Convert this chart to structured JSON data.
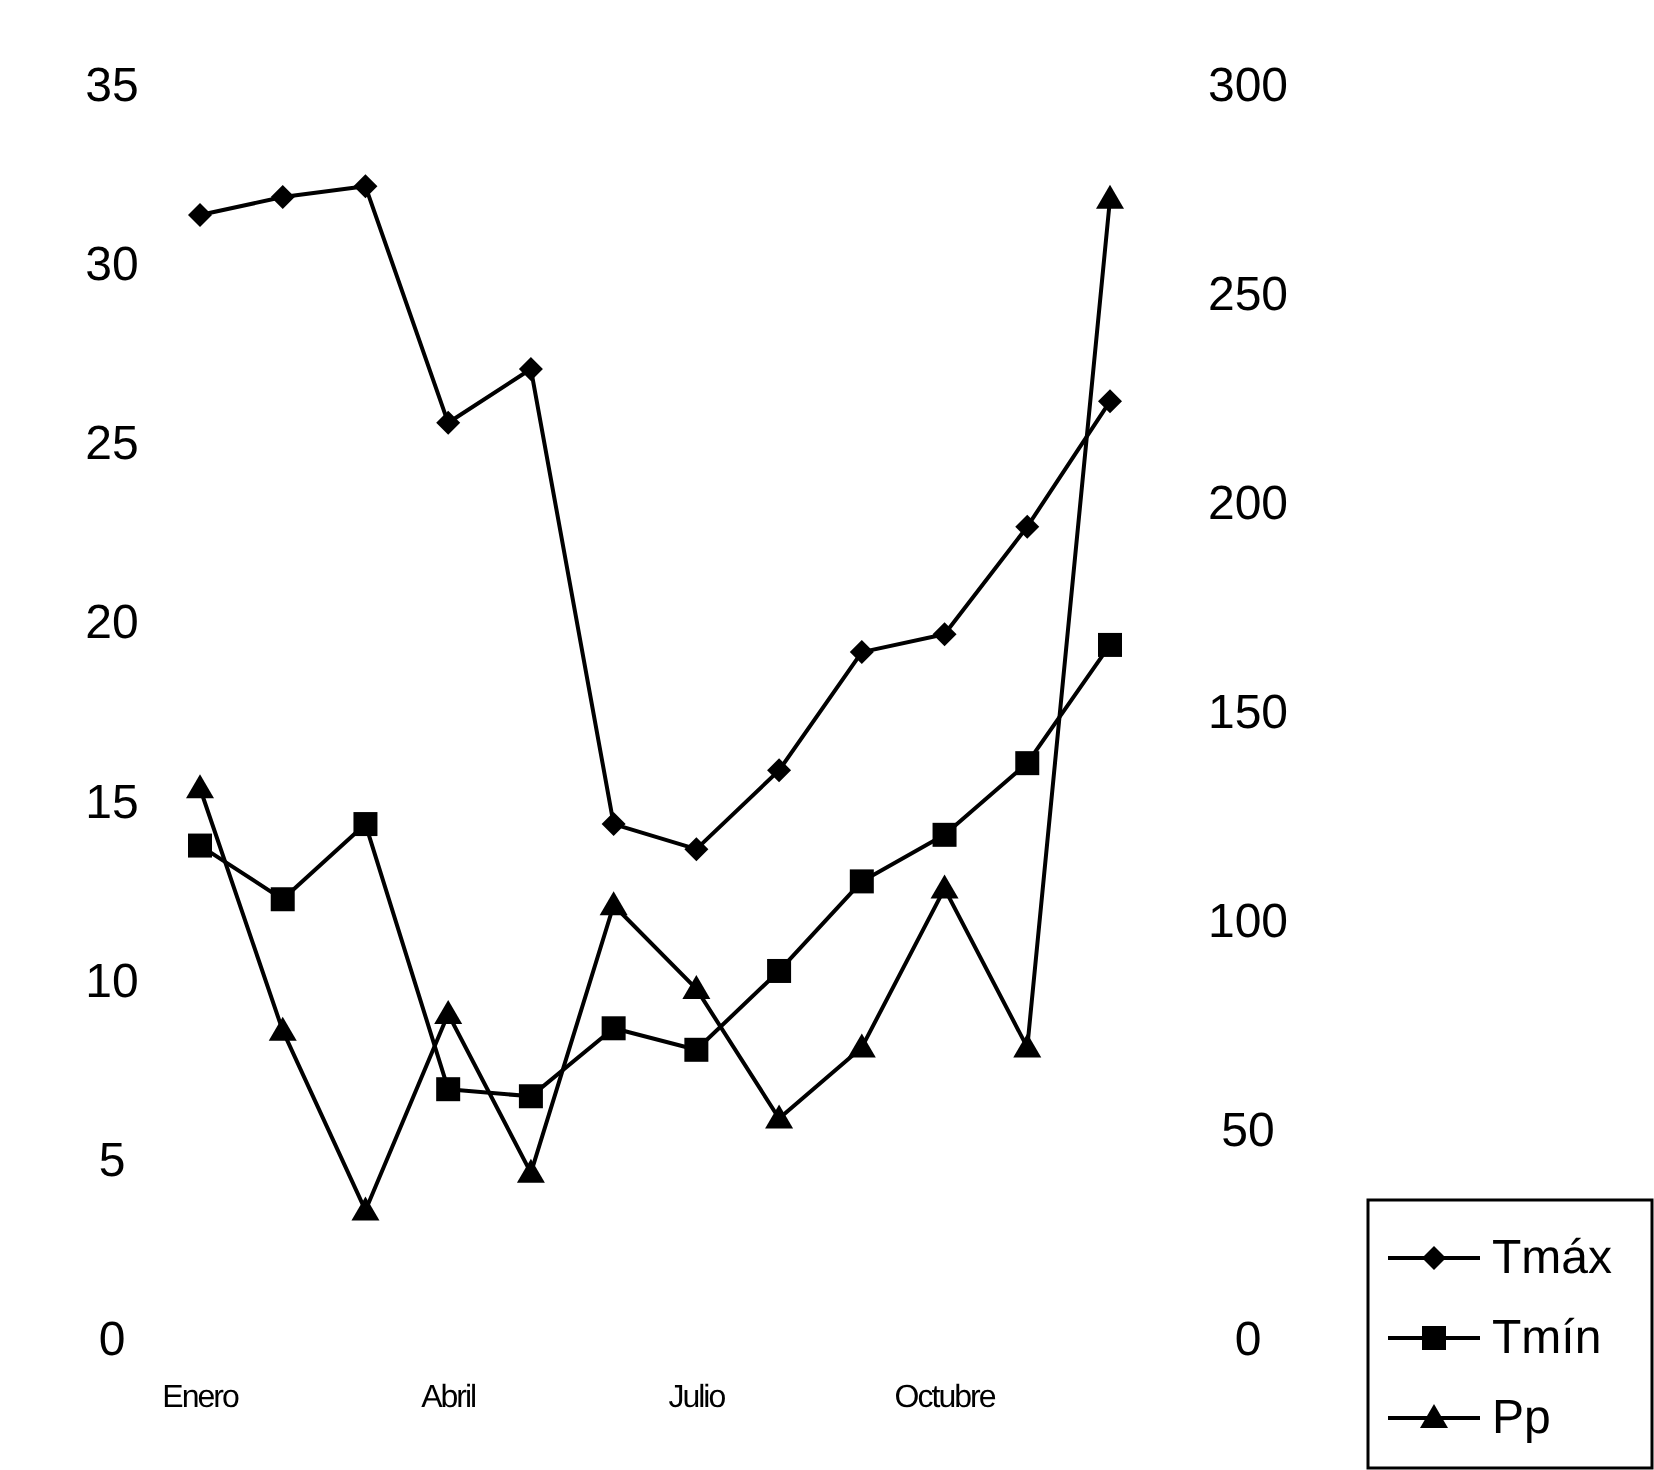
{
  "chart_data": {
    "type": "line",
    "categories": [
      "Enero",
      null,
      null,
      "Abril",
      null,
      null,
      "Julio",
      null,
      null,
      "Octubre",
      null,
      null
    ],
    "series": [
      {
        "name": "Tmáx",
        "color": "#000000",
        "marker": "diamond",
        "values": [
          31.4,
          31.9,
          32.2,
          25.6,
          27.1,
          14.4,
          13.7,
          15.9,
          19.2,
          19.7,
          22.7,
          26.2
        ]
      },
      {
        "name": "Tmín",
        "color": "#000000",
        "marker": "square",
        "values": [
          13.8,
          12.3,
          14.4,
          7.0,
          6.8,
          8.7,
          8.1,
          10.3,
          12.8,
          14.1,
          16.1,
          19.4
        ]
      },
      {
        "name": "Pp",
        "color": "#000000",
        "marker": "triangle",
        "axis": "y2",
        "values": [
          132,
          74,
          31,
          78,
          40,
          104,
          84,
          53,
          70,
          108,
          70,
          273
        ]
      }
    ],
    "ylim": [
      0,
      35
    ],
    "yticks": [
      0,
      5,
      10,
      15,
      20,
      25,
      30,
      35
    ],
    "y2lim": [
      0,
      300
    ],
    "y2ticks": [
      0,
      50,
      100,
      150,
      200,
      250,
      300
    ],
    "legend": "bottom right",
    "grid": false,
    "line_style": "solid"
  }
}
